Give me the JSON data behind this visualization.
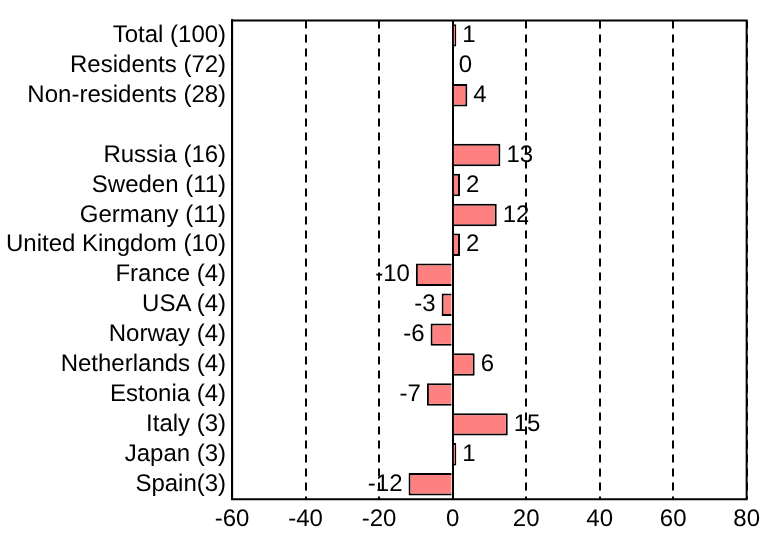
{
  "chart_data": {
    "type": "bar",
    "orientation": "horizontal",
    "categories": [
      "Total (100)",
      "Residents (72)",
      "Non-residents (28)",
      null,
      "Russia (16)",
      "Sweden (11)",
      "Germany (11)",
      "United Kingdom (10)",
      "France (4)",
      "USA (4)",
      "Norway (4)",
      "Netherlands (4)",
      "Estonia (4)",
      "Italy (3)",
      "Japan (3)",
      "Spain(3)"
    ],
    "values": [
      1,
      0,
      4,
      null,
      13,
      2,
      12,
      2,
      -10,
      -3,
      -6,
      6,
      -7,
      15,
      1,
      -12
    ],
    "color": "#ff8080",
    "xlim": [
      -60,
      80
    ],
    "xticks": [
      -60,
      -40,
      -20,
      0,
      20,
      40,
      60,
      80
    ],
    "grid": "x",
    "line_style": "dashed",
    "data_labels": true,
    "legend": false
  }
}
